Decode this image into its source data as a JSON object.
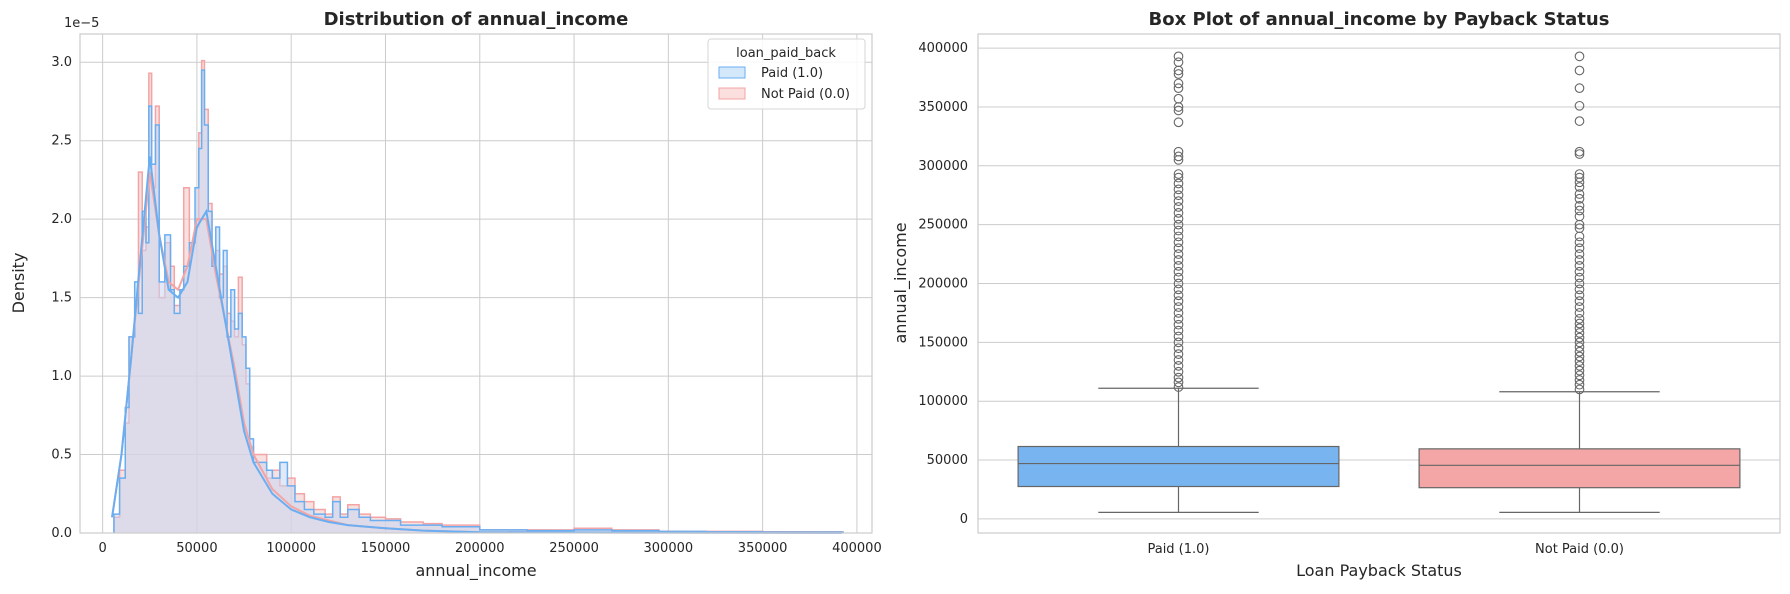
{
  "chart_data": [
    {
      "type": "histogram",
      "title": "Distribution of annual_income",
      "xlabel": "annual_income",
      "ylabel": "Density",
      "y_offset_label": "1e−5",
      "xlim": [
        -12000,
        408000
      ],
      "ylim": [
        0,
        3.18
      ],
      "xticks": [
        "0",
        "50000",
        "100000",
        "150000",
        "200000",
        "250000",
        "300000",
        "350000",
        "400000"
      ],
      "xtick_values": [
        0,
        50000,
        100000,
        150000,
        200000,
        250000,
        300000,
        350000,
        400000
      ],
      "yticks": [
        "0.0",
        "0.5",
        "1.0",
        "1.5",
        "2.0",
        "2.5",
        "3.0"
      ],
      "ytick_values": [
        0,
        0.5,
        1.0,
        1.5,
        2.0,
        2.5,
        3.0
      ],
      "grid": true,
      "legend": {
        "title": "loan_paid_back",
        "placement": "top-right"
      },
      "series": [
        {
          "name": "Paid (1.0)",
          "color": "#6aaef2",
          "density_curve": [
            [
              5000,
              0.1
            ],
            [
              10000,
              0.5
            ],
            [
              15000,
              1.1
            ],
            [
              20000,
              1.75
            ],
            [
              25000,
              2.4
            ],
            [
              30000,
              1.9
            ],
            [
              35000,
              1.55
            ],
            [
              40000,
              1.5
            ],
            [
              45000,
              1.6
            ],
            [
              50000,
              1.95
            ],
            [
              55000,
              2.05
            ],
            [
              60000,
              1.7
            ],
            [
              65000,
              1.35
            ],
            [
              70000,
              1.0
            ],
            [
              75000,
              0.65
            ],
            [
              80000,
              0.45
            ],
            [
              90000,
              0.25
            ],
            [
              100000,
              0.15
            ],
            [
              110000,
              0.1
            ],
            [
              120000,
              0.07
            ],
            [
              130000,
              0.05
            ],
            [
              150000,
              0.03
            ],
            [
              170000,
              0.015
            ],
            [
              200000,
              0.005
            ],
            [
              250000,
              0.003
            ],
            [
              300000,
              0.002
            ],
            [
              392000,
              0.001
            ]
          ],
          "histogram_peaks": [
            [
              6000,
              0.12
            ],
            [
              9000,
              0.35
            ],
            [
              12000,
              0.8
            ],
            [
              14000,
              1.25
            ],
            [
              17000,
              1.6
            ],
            [
              19000,
              1.4
            ],
            [
              21000,
              2.05
            ],
            [
              23000,
              1.85
            ],
            [
              24500,
              2.72
            ],
            [
              26000,
              2.35
            ],
            [
              28000,
              2.6
            ],
            [
              30000,
              1.6
            ],
            [
              33000,
              1.9
            ],
            [
              36000,
              1.55
            ],
            [
              38000,
              1.4
            ],
            [
              41000,
              1.55
            ],
            [
              43000,
              1.7
            ],
            [
              46000,
              1.85
            ],
            [
              49000,
              2.2
            ],
            [
              51000,
              2.45
            ],
            [
              52500,
              2.95
            ],
            [
              54000,
              2.6
            ],
            [
              56000,
              2.05
            ],
            [
              58000,
              1.7
            ],
            [
              60000,
              1.95
            ],
            [
              62000,
              1.5
            ],
            [
              64000,
              1.8
            ],
            [
              66000,
              1.25
            ],
            [
              68000,
              1.55
            ],
            [
              70000,
              1.3
            ],
            [
              72000,
              1.4
            ],
            [
              74000,
              1.25
            ],
            [
              76000,
              1.05
            ],
            [
              78000,
              0.6
            ],
            [
              80000,
              0.45
            ],
            [
              84000,
              0.45
            ],
            [
              87000,
              0.4
            ],
            [
              90000,
              0.35
            ],
            [
              94000,
              0.45
            ],
            [
              98000,
              0.3
            ],
            [
              102000,
              0.2
            ],
            [
              107000,
              0.15
            ],
            [
              112000,
              0.12
            ],
            [
              118000,
              0.1
            ],
            [
              122000,
              0.2
            ],
            [
              126000,
              0.1
            ],
            [
              130000,
              0.15
            ],
            [
              136000,
              0.1
            ],
            [
              142000,
              0.08
            ],
            [
              150000,
              0.08
            ],
            [
              158000,
              0.05
            ],
            [
              170000,
              0.05
            ],
            [
              180000,
              0.04
            ],
            [
              200000,
              0.02
            ],
            [
              225000,
              0.015
            ],
            [
              250000,
              0.02
            ],
            [
              270000,
              0.015
            ],
            [
              295000,
              0.01
            ],
            [
              320000,
              0.008
            ],
            [
              350000,
              0.006
            ],
            [
              392000,
              0.005
            ]
          ]
        },
        {
          "name": "Not Paid (0.0)",
          "color": "#f4a4a4",
          "density_curve": [
            [
              5000,
              0.1
            ],
            [
              10000,
              0.5
            ],
            [
              15000,
              1.1
            ],
            [
              20000,
              1.7
            ],
            [
              25000,
              2.3
            ],
            [
              30000,
              1.9
            ],
            [
              35000,
              1.6
            ],
            [
              40000,
              1.55
            ],
            [
              45000,
              1.7
            ],
            [
              50000,
              2.0
            ],
            [
              55000,
              2.0
            ],
            [
              60000,
              1.65
            ],
            [
              65000,
              1.35
            ],
            [
              70000,
              1.05
            ],
            [
              75000,
              0.7
            ],
            [
              80000,
              0.5
            ],
            [
              90000,
              0.28
            ],
            [
              100000,
              0.17
            ],
            [
              110000,
              0.11
            ],
            [
              120000,
              0.08
            ],
            [
              130000,
              0.05
            ],
            [
              150000,
              0.03
            ],
            [
              170000,
              0.015
            ],
            [
              200000,
              0.005
            ],
            [
              250000,
              0.003
            ],
            [
              300000,
              0.002
            ],
            [
              392000,
              0.001
            ]
          ],
          "histogram_peaks": [
            [
              6000,
              0.1
            ],
            [
              9000,
              0.4
            ],
            [
              12000,
              0.7
            ],
            [
              14000,
              1.25
            ],
            [
              17000,
              1.45
            ],
            [
              19000,
              2.3
            ],
            [
              21000,
              1.8
            ],
            [
              23000,
              1.95
            ],
            [
              24500,
              2.93
            ],
            [
              26000,
              2.2
            ],
            [
              28000,
              2.72
            ],
            [
              30000,
              1.5
            ],
            [
              33000,
              1.85
            ],
            [
              36000,
              1.7
            ],
            [
              38000,
              1.45
            ],
            [
              41000,
              1.55
            ],
            [
              43000,
              2.2
            ],
            [
              46000,
              1.85
            ],
            [
              49000,
              1.95
            ],
            [
              51000,
              2.55
            ],
            [
              52500,
              3.01
            ],
            [
              54000,
              2.7
            ],
            [
              56000,
              2.1
            ],
            [
              58000,
              1.75
            ],
            [
              60000,
              1.8
            ],
            [
              62000,
              1.65
            ],
            [
              64000,
              1.7
            ],
            [
              66000,
              1.4
            ],
            [
              68000,
              1.35
            ],
            [
              70000,
              1.25
            ],
            [
              72000,
              1.63
            ],
            [
              74000,
              1.2
            ],
            [
              76000,
              0.95
            ],
            [
              78000,
              0.55
            ],
            [
              80000,
              0.5
            ],
            [
              84000,
              0.5
            ],
            [
              87000,
              0.35
            ],
            [
              90000,
              0.4
            ],
            [
              94000,
              0.3
            ],
            [
              98000,
              0.35
            ],
            [
              102000,
              0.25
            ],
            [
              107000,
              0.2
            ],
            [
              112000,
              0.15
            ],
            [
              118000,
              0.12
            ],
            [
              122000,
              0.23
            ],
            [
              126000,
              0.12
            ],
            [
              130000,
              0.18
            ],
            [
              136000,
              0.12
            ],
            [
              142000,
              0.1
            ],
            [
              150000,
              0.09
            ],
            [
              158000,
              0.07
            ],
            [
              170000,
              0.06
            ],
            [
              180000,
              0.05
            ],
            [
              200000,
              0.02
            ],
            [
              225000,
              0.02
            ],
            [
              250000,
              0.03
            ],
            [
              270000,
              0.02
            ],
            [
              295000,
              0.01
            ],
            [
              320000,
              0.01
            ],
            [
              350000,
              0.008
            ],
            [
              392000,
              0.006
            ]
          ]
        }
      ]
    },
    {
      "type": "box",
      "title": "Box Plot of annual_income by Payback Status",
      "xlabel": "Loan Payback Status",
      "ylabel": "annual_income",
      "ylim": [
        -12000,
        412000
      ],
      "yticks": [
        "0",
        "50000",
        "100000",
        "150000",
        "200000",
        "250000",
        "300000",
        "350000",
        "400000"
      ],
      "ytick_values": [
        0,
        50000,
        100000,
        150000,
        200000,
        250000,
        300000,
        350000,
        400000
      ],
      "grid": true,
      "categories": [
        "Paid (1.0)",
        "Not Paid (0.0)"
      ],
      "boxes": [
        {
          "name": "Paid (1.0)",
          "color": "#78b4f0",
          "whisker_low": 5500,
          "q1": 27500,
          "median": 47000,
          "q3": 61500,
          "whisker_high": 111000,
          "outliers": [
            112000,
            116000,
            120000,
            125000,
            130000,
            135000,
            140000,
            145000,
            150000,
            155000,
            160000,
            165000,
            170000,
            175000,
            180000,
            185000,
            190000,
            195000,
            200000,
            205000,
            210000,
            215000,
            220000,
            225000,
            230000,
            235000,
            240000,
            245000,
            250000,
            255000,
            260000,
            265000,
            270000,
            275000,
            280000,
            285000,
            290000,
            293000,
            305000,
            308000,
            312000,
            337000,
            347000,
            350000,
            357000,
            366000,
            370000,
            378000,
            381000,
            388000,
            393000
          ]
        },
        {
          "name": "Not Paid (0.0)",
          "color": "#f4a6a6",
          "whisker_low": 5500,
          "q1": 26500,
          "median": 45500,
          "q3": 59500,
          "whisker_high": 108000,
          "outliers": [
            110000,
            114000,
            118000,
            122000,
            126000,
            130000,
            134000,
            138000,
            142000,
            146000,
            150000,
            154000,
            158000,
            162000,
            166000,
            170000,
            175000,
            180000,
            185000,
            190000,
            195000,
            200000,
            205000,
            210000,
            215000,
            220000,
            225000,
            230000,
            235000,
            240000,
            247000,
            250000,
            257000,
            262000,
            266000,
            272000,
            276000,
            282000,
            286000,
            290000,
            293000,
            310000,
            312000,
            338000,
            351000,
            366000,
            381000,
            393000
          ]
        }
      ]
    }
  ]
}
